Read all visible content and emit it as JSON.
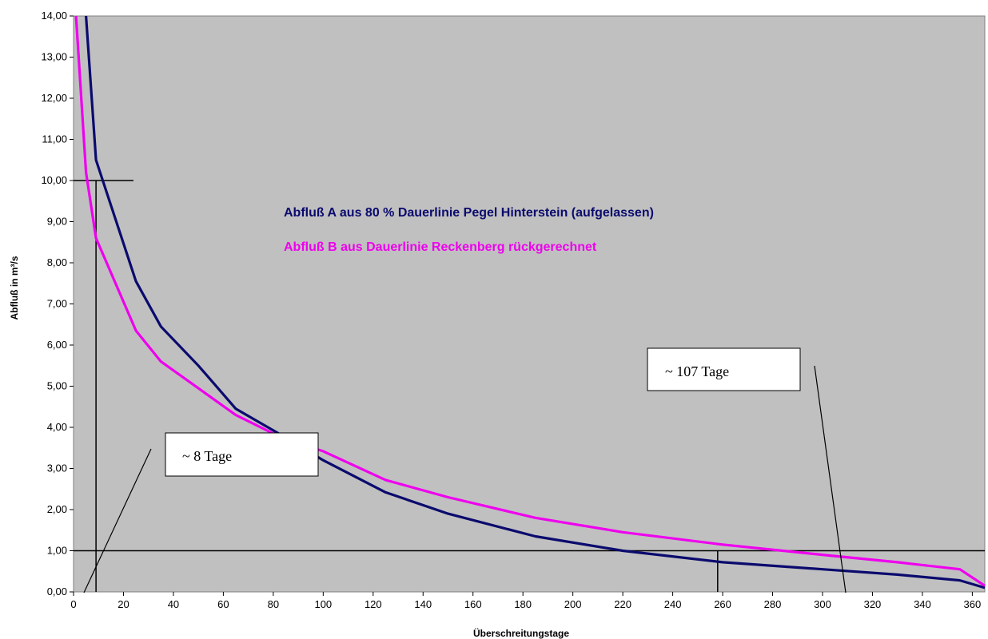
{
  "chart_data": {
    "type": "line",
    "title": "",
    "xlabel": "Überschreitungstage",
    "ylabel": "Abfluß in m³/s",
    "xlim": [
      0,
      365
    ],
    "ylim": [
      0,
      14
    ],
    "x_ticks": [
      0,
      20,
      40,
      60,
      80,
      100,
      120,
      140,
      160,
      180,
      200,
      220,
      240,
      260,
      280,
      300,
      320,
      340,
      360
    ],
    "y_ticks": [
      "0,00",
      "1,00",
      "2,00",
      "3,00",
      "4,00",
      "5,00",
      "6,00",
      "7,00",
      "8,00",
      "9,00",
      "10,00",
      "11,00",
      "12,00",
      "13,00",
      "14,00"
    ],
    "y_tick_values": [
      0,
      1,
      2,
      3,
      4,
      5,
      6,
      7,
      8,
      9,
      10,
      11,
      12,
      13,
      14
    ],
    "grid": false,
    "plot_background": "#c0c0c0",
    "series": [
      {
        "name": "Abfluß A aus 80 % Dauerlinie Pegel Hinterstein (aufgelassen)",
        "color": "#0a0a6e",
        "x": [
          5,
          9,
          25,
          35,
          50,
          65,
          85,
          100,
          125,
          150,
          185,
          220,
          260,
          300,
          330,
          355,
          365
        ],
        "y": [
          14.0,
          10.5,
          7.55,
          6.45,
          5.5,
          4.45,
          3.75,
          3.2,
          2.42,
          1.9,
          1.35,
          1.0,
          0.72,
          0.55,
          0.42,
          0.28,
          0.1
        ]
      },
      {
        "name": "Abfluß B aus Dauerlinie Reckenberg rückgerechnet",
        "color": "#ee00ee",
        "x": [
          1,
          5,
          9,
          25,
          35,
          50,
          65,
          85,
          100,
          125,
          150,
          185,
          220,
          260,
          300,
          330,
          355,
          365
        ],
        "y": [
          14.0,
          10.2,
          8.6,
          6.35,
          5.6,
          4.95,
          4.3,
          3.7,
          3.42,
          2.72,
          2.3,
          1.8,
          1.45,
          1.15,
          0.9,
          0.72,
          0.55,
          0.15
        ]
      }
    ],
    "reference_lines": {
      "horizontal": [
        1.0,
        10.0
      ],
      "vertical": [
        9,
        258
      ]
    },
    "annotations": [
      {
        "text": "~ 8 Tage"
      },
      {
        "text": "~ 107 Tage"
      }
    ]
  }
}
